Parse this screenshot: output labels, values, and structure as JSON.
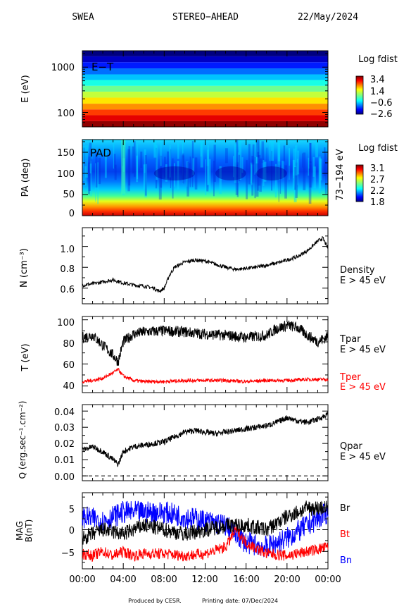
{
  "header": {
    "instrument": "SWEA",
    "spacecraft": "STEREO−AHEAD",
    "date": "22/May/2024"
  },
  "footer": {
    "produced": "Produced by CESR.",
    "printing": "Printing date: 07/Dec/2024"
  },
  "chart_data": [
    {
      "type": "heatmap",
      "label": "E−T",
      "ylabel": "E (eV)",
      "yscale": "log",
      "yticks": [
        "1000",
        "100"
      ],
      "colorbar": {
        "title": "Log fdist",
        "ticks": [
          "3.4",
          "1.4",
          "−0.6",
          "−2.6"
        ],
        "range": [
          -2.6,
          3.4
        ]
      },
      "energy_bands_eV": [
        2000,
        1500,
        1100,
        800,
        600,
        450,
        330,
        250,
        180,
        135,
        100,
        75,
        55
      ],
      "band_log_fdist": [
        -2.6,
        -2.2,
        -1.7,
        -1.2,
        -0.7,
        -0.2,
        0.3,
        0.8,
        1.3,
        1.8,
        2.3,
        2.8,
        3.3
      ]
    },
    {
      "type": "heatmap",
      "label": "PAD",
      "ylabel": "PA (deg)",
      "yticks": [
        "150",
        "100",
        "50",
        "0"
      ],
      "ylim": [
        0,
        180
      ],
      "energy_range_label": "73−194 eV",
      "colorbar": {
        "title": "Log fdist",
        "ticks": [
          "3.1",
          "2.7",
          "2.2",
          "1.8"
        ],
        "range": [
          1.8,
          3.1
        ]
      }
    },
    {
      "type": "line",
      "ylabel": "N (cm⁻³)",
      "yticks": [
        "1.0",
        "0.8",
        "0.6"
      ],
      "ylim": [
        0.45,
        1.18
      ],
      "series": [
        {
          "name": "Density",
          "sub": "E > 45 eV",
          "color": "#000000",
          "x_hours": [
            0,
            1,
            2,
            3,
            4,
            5,
            6,
            7,
            7.5,
            8,
            8.5,
            9,
            10,
            11,
            12,
            13,
            14,
            15,
            16,
            17,
            18,
            19,
            20,
            21,
            22,
            23,
            23.5,
            24
          ],
          "values": [
            0.63,
            0.64,
            0.66,
            0.68,
            0.65,
            0.63,
            0.62,
            0.6,
            0.57,
            0.6,
            0.72,
            0.8,
            0.85,
            0.87,
            0.86,
            0.83,
            0.8,
            0.78,
            0.79,
            0.8,
            0.82,
            0.84,
            0.87,
            0.9,
            0.96,
            1.05,
            1.08,
            0.98
          ]
        }
      ]
    },
    {
      "type": "line",
      "ylabel": "T (eV)",
      "yticks": [
        "100",
        "80",
        "60",
        "40"
      ],
      "ylim": [
        34,
        103
      ],
      "series": [
        {
          "name": "Tpar",
          "sub": "E > 45 eV",
          "color": "#000000",
          "x_hours": [
            0,
            1,
            2,
            3,
            3.5,
            4,
            5,
            6,
            8,
            10,
            12,
            14,
            16,
            18,
            19,
            20,
            21,
            22,
            23,
            24
          ],
          "values": [
            84,
            86,
            77,
            68,
            62,
            80,
            87,
            89,
            90,
            89,
            87,
            86,
            84,
            86,
            92,
            95,
            93,
            86,
            80,
            85
          ]
        },
        {
          "name": "Tper",
          "sub": "E > 45 eV",
          "color": "#ff0000",
          "x_hours": [
            0,
            1,
            2,
            3,
            3.5,
            4,
            5,
            6,
            8,
            10,
            12,
            14,
            16,
            18,
            20,
            22,
            24
          ],
          "values": [
            44,
            45,
            47,
            52,
            55,
            49,
            45,
            44,
            44,
            45,
            45,
            45,
            44,
            45,
            45,
            46,
            46
          ]
        }
      ]
    },
    {
      "type": "line",
      "ylabel": "Q (erg.sec⁻¹.cm⁻²)",
      "yticks": [
        "0.04",
        "0.03",
        "0.02",
        "0.01",
        "0.00"
      ],
      "ylim": [
        -0.003,
        0.044
      ],
      "series": [
        {
          "name": "Qpar",
          "sub": "E > 45 eV",
          "color": "#000000",
          "x_hours": [
            0,
            1,
            2,
            3,
            3.5,
            4,
            5,
            6,
            7,
            8,
            9,
            10,
            11,
            12,
            13,
            14,
            16,
            18,
            19,
            20,
            21,
            22,
            23,
            24
          ],
          "values": [
            0.016,
            0.018,
            0.015,
            0.01,
            0.007,
            0.015,
            0.018,
            0.019,
            0.02,
            0.021,
            0.024,
            0.027,
            0.028,
            0.027,
            0.026,
            0.027,
            0.029,
            0.031,
            0.033,
            0.036,
            0.034,
            0.033,
            0.035,
            0.038
          ]
        }
      ],
      "reference_line": 0.0
    },
    {
      "type": "line",
      "ylabel": "MAG B(nT)",
      "yticks": [
        "5",
        "0",
        "−5"
      ],
      "ylim": [
        -9,
        8.5
      ],
      "series": [
        {
          "name": "Br",
          "color": "#000000",
          "x_hours": [
            0,
            2,
            4,
            6,
            8,
            10,
            12,
            14,
            16,
            18,
            20,
            22,
            24
          ],
          "values": [
            -2,
            0,
            -1,
            1,
            0,
            -1,
            0,
            1,
            1,
            0,
            3,
            5,
            5
          ]
        },
        {
          "name": "Bt",
          "color": "#ff0000",
          "x_hours": [
            0,
            1,
            2,
            3,
            4,
            5,
            6,
            8,
            10,
            12,
            14,
            15,
            16,
            18,
            20,
            22,
            24
          ],
          "values": [
            -5.5,
            -6,
            -5,
            -6,
            -5,
            -6,
            -5.5,
            -5.5,
            -6,
            -5.5,
            -4,
            0,
            -3,
            -5.5,
            -6,
            -5,
            -4
          ]
        },
        {
          "name": "Bn",
          "color": "#0000ff",
          "x_hours": [
            0,
            2,
            4,
            6,
            8,
            10,
            12,
            14,
            16,
            18,
            20,
            22,
            24
          ],
          "values": [
            3,
            2,
            4,
            4,
            4,
            3,
            2,
            1,
            -3,
            -4,
            -2,
            1,
            4
          ]
        }
      ],
      "reference_line": 0
    }
  ],
  "xaxis": {
    "ticks": [
      "00:00",
      "04:00",
      "08:00",
      "12:00",
      "16:00",
      "20:00",
      "00:00"
    ]
  }
}
